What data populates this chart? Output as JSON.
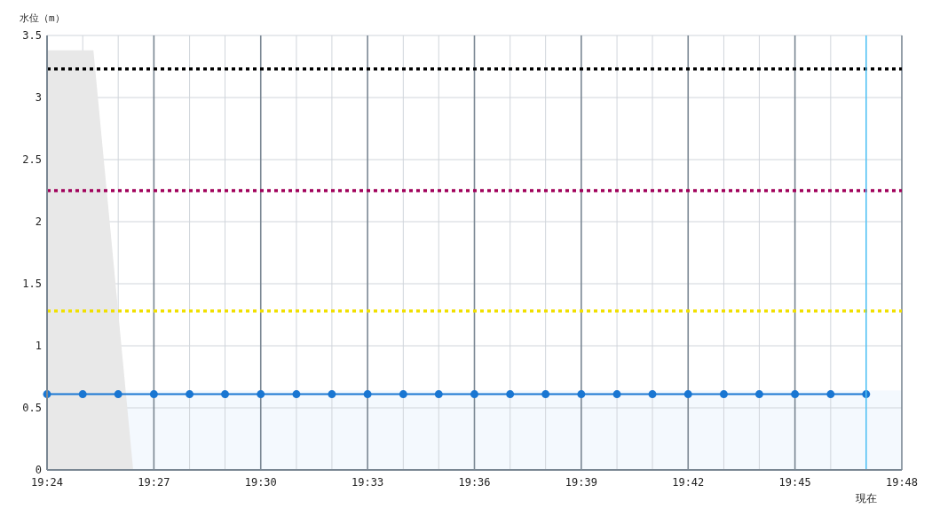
{
  "chart_data": {
    "type": "line",
    "ylabel": "水位（m）",
    "xlim": [
      19.4,
      19.8
    ],
    "ylim": [
      0,
      3.5
    ],
    "xticks": [
      {
        "value": 19.4,
        "label": "19:24"
      },
      {
        "value": 19.4167,
        "label": null
      },
      {
        "value": 19.4333,
        "label": null
      },
      {
        "value": 19.45,
        "label": "19:27"
      },
      {
        "value": 19.4667,
        "label": null
      },
      {
        "value": 19.4833,
        "label": null
      },
      {
        "value": 19.5,
        "label": "19:30"
      },
      {
        "value": 19.5167,
        "label": null
      },
      {
        "value": 19.5333,
        "label": null
      },
      {
        "value": 19.55,
        "label": "19:33"
      },
      {
        "value": 19.5667,
        "label": null
      },
      {
        "value": 19.5833,
        "label": null
      },
      {
        "value": 19.6,
        "label": "19:36"
      },
      {
        "value": 19.6167,
        "label": null
      },
      {
        "value": 19.6333,
        "label": null
      },
      {
        "value": 19.65,
        "label": "19:39"
      },
      {
        "value": 19.6667,
        "label": null
      },
      {
        "value": 19.6833,
        "label": null
      },
      {
        "value": 19.7,
        "label": "19:42"
      },
      {
        "value": 19.7167,
        "label": null
      },
      {
        "value": 19.7333,
        "label": null
      },
      {
        "value": 19.75,
        "label": "19:45"
      },
      {
        "value": 19.7667,
        "label": null
      },
      {
        "value": 19.7833,
        "label": null
      },
      {
        "value": 19.8,
        "label": "19:48"
      }
    ],
    "yticks": [
      0,
      0.5,
      1,
      1.5,
      2,
      2.5,
      3,
      3.5
    ],
    "grid": true,
    "marker": "circle",
    "line_style": "solid",
    "series": [
      {
        "type": "area",
        "color": "#e8e8e8",
        "x": [
          19.4,
          19.4217,
          19.4403
        ],
        "values": [
          3.38,
          3.38,
          0
        ],
        "marker": "none"
      },
      {
        "color": "#1976d2",
        "x": [
          19.4,
          19.4167,
          19.4333,
          19.45,
          19.4667,
          19.4833,
          19.5,
          19.5167,
          19.5333,
          19.55,
          19.5667,
          19.5833,
          19.6,
          19.6167,
          19.6333,
          19.65,
          19.6667,
          19.6833,
          19.7,
          19.7167,
          19.7333,
          19.75,
          19.7667,
          19.7833
        ],
        "values": [
          0.61,
          0.61,
          0.61,
          0.61,
          0.61,
          0.61,
          0.61,
          0.61,
          0.61,
          0.61,
          0.61,
          0.61,
          0.61,
          0.61,
          0.61,
          0.61,
          0.61,
          0.61,
          0.61,
          0.61,
          0.61,
          0.61,
          0.61,
          0.61
        ]
      }
    ],
    "bands": [
      {
        "axis": "y",
        "from": 0,
        "to": 0.64,
        "color": "#f4f9fe"
      }
    ],
    "ref_lines": [
      {
        "axis": "y",
        "value": 3.23,
        "color": "#000000",
        "line_style": "dotted"
      },
      {
        "axis": "y",
        "value": 2.25,
        "color": "#a0005a",
        "line_style": "dotted"
      },
      {
        "axis": "y",
        "value": 1.28,
        "color": "#f0e000",
        "line_style": "dotted"
      },
      {
        "axis": "x",
        "value": 19.7833,
        "label": "現在",
        "color": "#4fc3f7",
        "line_style": "solid"
      }
    ]
  }
}
